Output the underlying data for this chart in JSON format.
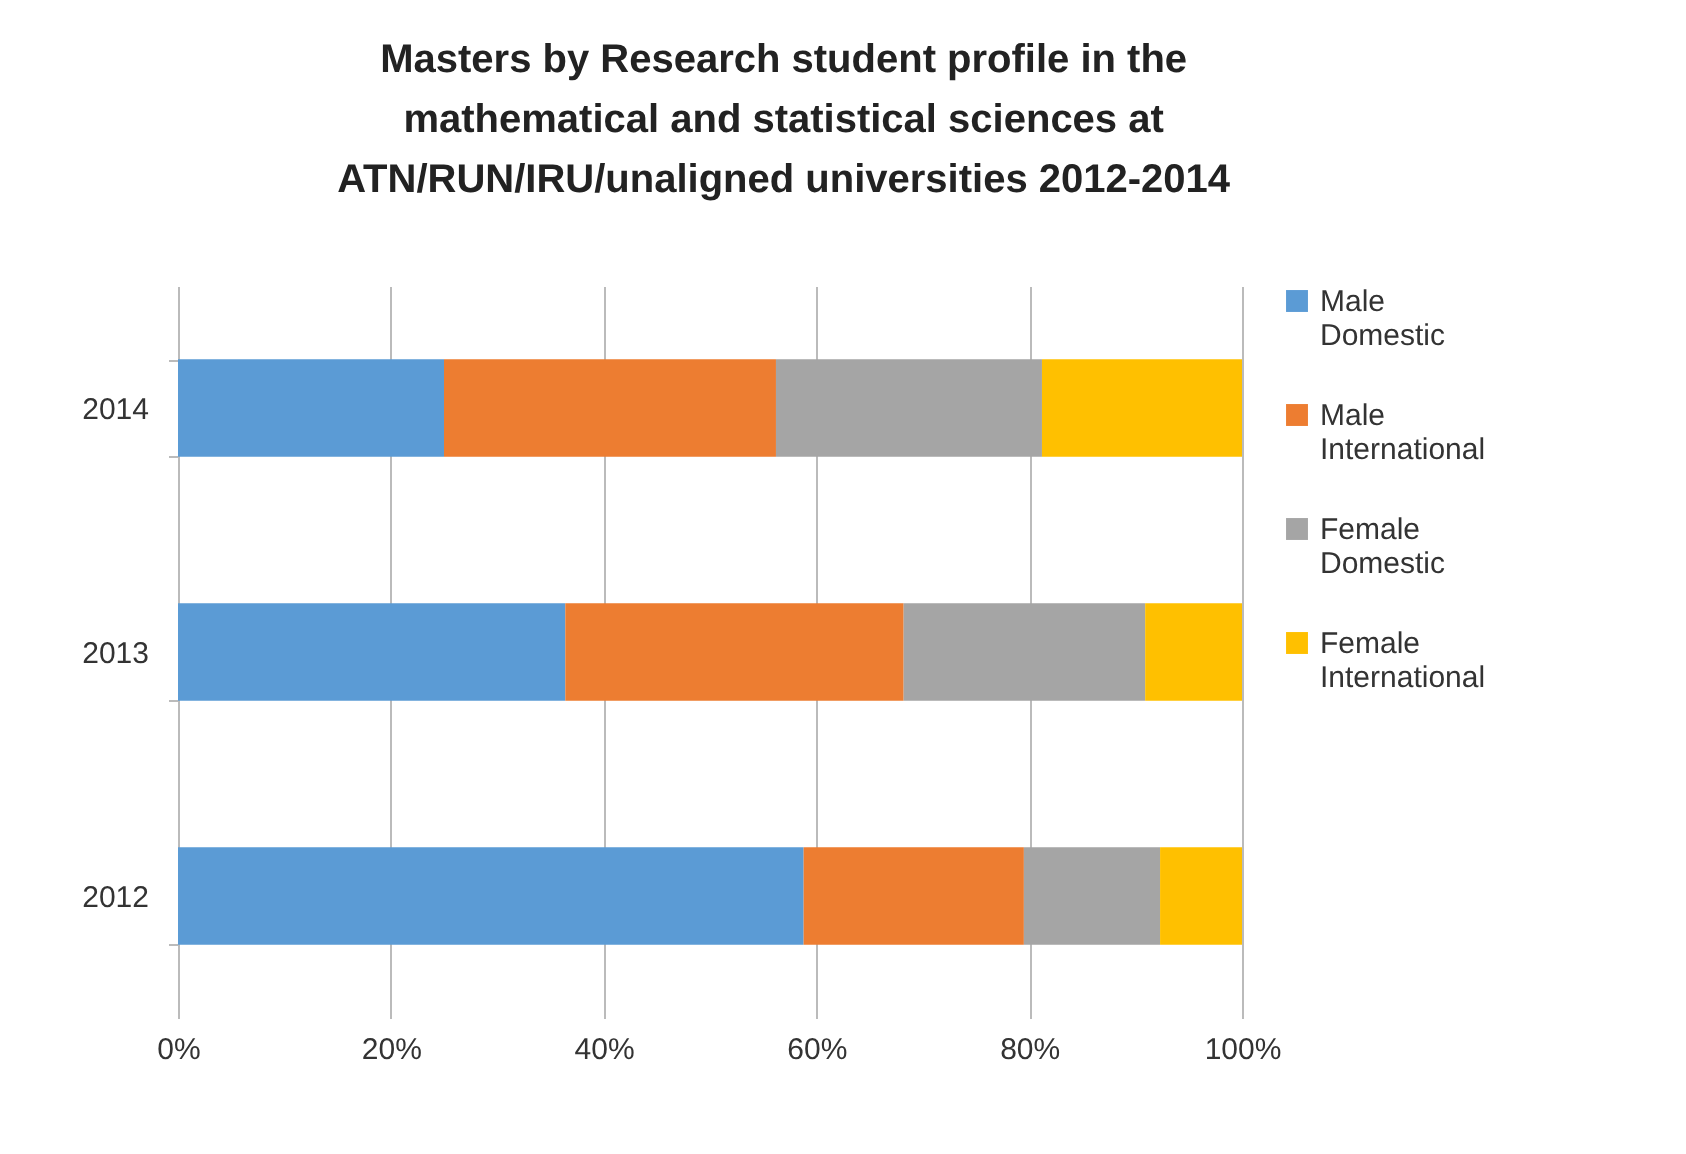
{
  "chart_data": {
    "type": "bar",
    "orientation": "horizontal",
    "stacked": true,
    "title": "Masters by Research student profile in the mathematical and statistical sciences at ATN/RUN/IRU/unaligned universities 2012-2014",
    "categories": [
      "2014",
      "2013",
      "2012"
    ],
    "series": [
      {
        "name": "Male Domestic",
        "color": "#5b9bd5",
        "values": [
          25,
          36.4,
          58.8
        ]
      },
      {
        "name": "Male International",
        "color": "#ed7d31",
        "values": [
          31.2,
          31.8,
          20.7
        ]
      },
      {
        "name": "Female Domestic",
        "color": "#a5a5a5",
        "values": [
          25,
          22.7,
          12.8
        ]
      },
      {
        "name": "Female International",
        "color": "#ffc000",
        "values": [
          18.8,
          9.1,
          7.7
        ]
      }
    ],
    "xlim": [
      0,
      100
    ],
    "xticks": [
      {
        "value": 0,
        "label": "0%"
      },
      {
        "value": 20,
        "label": "20%"
      },
      {
        "value": 40,
        "label": "40%"
      },
      {
        "value": 60,
        "label": "60%"
      },
      {
        "value": 80,
        "label": "80%"
      },
      {
        "value": 100,
        "label": "100%"
      }
    ],
    "grid": "x",
    "legend": "right"
  }
}
